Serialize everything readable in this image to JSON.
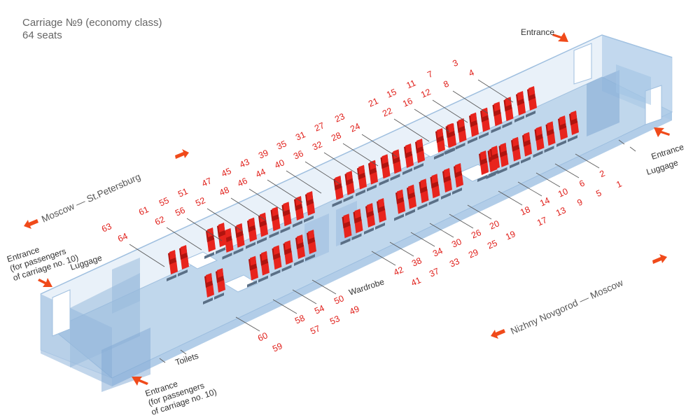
{
  "title": {
    "line1": "Carriage №9 (economy class)",
    "line2": "64 seats"
  },
  "labels": {
    "entrance_top": "Entrance",
    "entrance_right": "Entrance",
    "luggage_right": "Luggage",
    "luggage_left": "Luggage",
    "wardrobe": "Wardrobe",
    "toilets": "Toilets",
    "entrance_left_l1": "Entrance",
    "entrance_left_l2": "(for passengers",
    "entrance_left_l3": "of carriage no. 10)",
    "entrance_bottom_l1": "Entrance",
    "entrance_bottom_l2": "(for passengers",
    "entrance_bottom_l3": "of carriage no. 10)",
    "dir_upper": "Moscow — St.Petersburg",
    "dir_lower": "Nizhny Novgorod — Moscow"
  },
  "seats": {
    "upper_row_top": [
      "3",
      "7",
      "11",
      "15",
      "21",
      "23",
      "27",
      "31",
      "35",
      "39",
      "43",
      "45",
      "47",
      "51",
      "55",
      "61",
      "63"
    ],
    "upper_row_bottom": [
      "4",
      "8",
      "12",
      "16",
      "22",
      "24",
      "28",
      "32",
      "36",
      "40",
      "44",
      "46",
      "48",
      "52",
      "56",
      "62",
      "64"
    ],
    "lower_row_top": [
      "2",
      "6",
      "10",
      "14",
      "18",
      "20",
      "26",
      "30",
      "34",
      "38",
      "42",
      "50",
      "54",
      "58",
      "60"
    ],
    "lower_row_bottom": [
      "1",
      "5",
      "9",
      "13",
      "17",
      "19",
      "25",
      "29",
      "33",
      "37",
      "41",
      "49",
      "53",
      "57",
      "59"
    ]
  },
  "colors": {
    "seat": "#e8241d",
    "seat_dark": "#b0140f",
    "carriage_fill": "#bcd6ee",
    "carriage_edge": "#8fb4d8",
    "arrow": "#f04a1a",
    "number": "#e0201b"
  }
}
